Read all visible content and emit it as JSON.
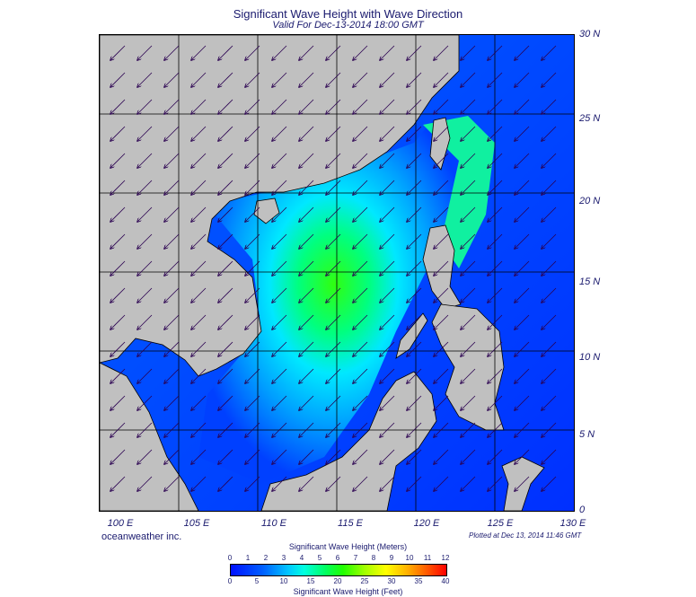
{
  "header": {
    "title": "Significant Wave Height with Wave Direction",
    "subtitle": "Valid For Dec-13-2014 18:00 GMT"
  },
  "map": {
    "lat_labels": [
      "30 N",
      "25 N",
      "20 N",
      "15 N",
      "10 N",
      "5 N",
      "0"
    ],
    "lon_labels": [
      "100 E",
      "105 E",
      "110 E",
      "115 E",
      "120 E",
      "125 E",
      "130 E"
    ],
    "colors": {
      "land": "#c0c0c0",
      "low_wave": "#0050ff",
      "mid_wave": "#00e8ff",
      "high_wave": "#10ff30",
      "arrow": "#2a0050",
      "grid": "#000000"
    },
    "arrow_direction": "southwest"
  },
  "footer": {
    "credit": "oceanweather inc.",
    "plotted": "Plotted at Dec 13, 2014 11:46 GMT"
  },
  "colorbar": {
    "title_top": "Significant Wave Height (Meters)",
    "title_bottom": "Significant Wave Height (Feet)",
    "meters_ticks": [
      "0",
      "1",
      "2",
      "3",
      "4",
      "5",
      "6",
      "7",
      "8",
      "9",
      "10",
      "11",
      "12"
    ],
    "feet_ticks": [
      "0",
      "5",
      "10",
      "15",
      "20",
      "25",
      "30",
      "35",
      "40"
    ]
  }
}
